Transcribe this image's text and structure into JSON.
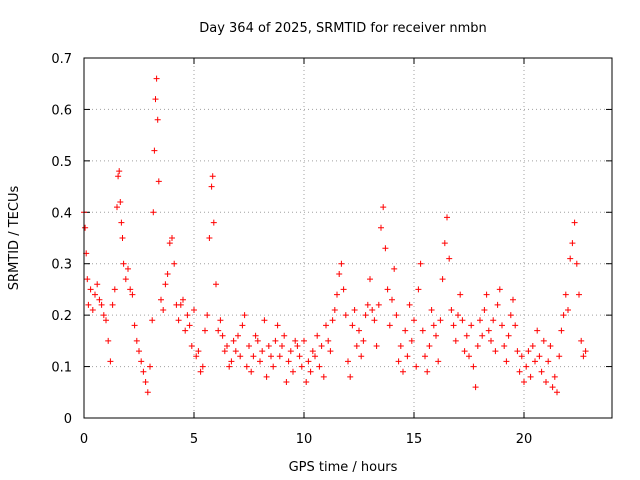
{
  "chart_data": {
    "type": "scatter",
    "title": "Day 364 of 2025, SRMTID for receiver nmbn",
    "xlabel": "GPS time / hours",
    "ylabel": "SRMTID / TECUs",
    "xlim": [
      0,
      24
    ],
    "ylim": [
      0,
      0.7
    ],
    "xticks": [
      0,
      5,
      10,
      15,
      20
    ],
    "yticks": [
      0,
      0.1,
      0.2,
      0.3,
      0.4,
      0.5,
      0.6,
      0.7
    ],
    "xtick_labels": [
      "0",
      "5",
      "10",
      "15",
      "20"
    ],
    "ytick_labels": [
      "0",
      "0.1",
      "0.2",
      "0.3",
      "0.4",
      "0.5",
      "0.6",
      "0.7"
    ],
    "grid": true,
    "marker": "+",
    "color": "#ff0000",
    "series": [
      {
        "name": "SRMTID",
        "x": [
          0.0,
          0.05,
          0.1,
          0.15,
          0.2,
          0.3,
          0.4,
          0.5,
          0.6,
          0.7,
          0.8,
          0.9,
          1.0,
          1.1,
          1.2,
          1.3,
          1.4,
          1.5,
          1.55,
          1.6,
          1.65,
          1.7,
          1.75,
          1.8,
          1.9,
          2.0,
          2.1,
          2.2,
          2.3,
          2.4,
          2.5,
          2.6,
          2.7,
          2.8,
          2.9,
          3.0,
          3.1,
          3.15,
          3.2,
          3.25,
          3.3,
          3.35,
          3.4,
          3.5,
          3.6,
          3.7,
          3.8,
          3.9,
          4.0,
          4.1,
          4.2,
          4.3,
          4.4,
          4.5,
          4.6,
          4.7,
          4.8,
          4.9,
          5.0,
          5.1,
          5.2,
          5.3,
          5.4,
          5.5,
          5.6,
          5.7,
          5.8,
          5.85,
          5.9,
          6.0,
          6.1,
          6.2,
          6.3,
          6.4,
          6.5,
          6.6,
          6.7,
          6.8,
          6.9,
          7.0,
          7.1,
          7.2,
          7.3,
          7.4,
          7.5,
          7.6,
          7.7,
          7.8,
          7.9,
          8.0,
          8.1,
          8.2,
          8.3,
          8.4,
          8.5,
          8.6,
          8.7,
          8.8,
          8.9,
          9.0,
          9.1,
          9.2,
          9.3,
          9.4,
          9.5,
          9.6,
          9.7,
          9.8,
          9.9,
          10.0,
          10.1,
          10.2,
          10.3,
          10.4,
          10.5,
          10.6,
          10.7,
          10.8,
          10.9,
          11.0,
          11.1,
          11.2,
          11.3,
          11.4,
          11.5,
          11.6,
          11.7,
          11.8,
          11.9,
          12.0,
          12.1,
          12.2,
          12.3,
          12.4,
          12.5,
          12.6,
          12.7,
          12.8,
          12.9,
          13.0,
          13.1,
          13.2,
          13.3,
          13.4,
          13.5,
          13.6,
          13.7,
          13.8,
          13.9,
          14.0,
          14.1,
          14.2,
          14.3,
          14.4,
          14.5,
          14.6,
          14.7,
          14.8,
          14.9,
          15.0,
          15.1,
          15.2,
          15.3,
          15.4,
          15.5,
          15.6,
          15.7,
          15.8,
          15.9,
          16.0,
          16.1,
          16.2,
          16.3,
          16.4,
          16.5,
          16.6,
          16.7,
          16.8,
          16.9,
          17.0,
          17.1,
          17.2,
          17.3,
          17.4,
          17.5,
          17.6,
          17.7,
          17.8,
          17.9,
          18.0,
          18.1,
          18.2,
          18.3,
          18.4,
          18.5,
          18.6,
          18.7,
          18.8,
          18.9,
          19.0,
          19.1,
          19.2,
          19.3,
          19.4,
          19.5,
          19.6,
          19.7,
          19.8,
          19.9,
          20.0,
          20.1,
          20.2,
          20.3,
          20.4,
          20.5,
          20.6,
          20.7,
          20.8,
          20.9,
          21.0,
          21.1,
          21.2,
          21.3,
          21.4,
          21.5,
          21.6,
          21.7,
          21.8,
          21.9,
          22.0,
          22.1,
          22.2,
          22.3,
          22.4,
          22.5,
          22.6,
          22.7,
          22.8
        ],
        "y": [
          0.4,
          0.37,
          0.32,
          0.27,
          0.22,
          0.25,
          0.21,
          0.24,
          0.26,
          0.23,
          0.22,
          0.2,
          0.19,
          0.15,
          0.11,
          0.22,
          0.25,
          0.41,
          0.47,
          0.48,
          0.42,
          0.38,
          0.35,
          0.3,
          0.27,
          0.29,
          0.25,
          0.24,
          0.18,
          0.15,
          0.13,
          0.11,
          0.09,
          0.07,
          0.05,
          0.1,
          0.19,
          0.4,
          0.52,
          0.62,
          0.66,
          0.58,
          0.46,
          0.23,
          0.21,
          0.26,
          0.28,
          0.34,
          0.35,
          0.3,
          0.22,
          0.19,
          0.22,
          0.23,
          0.17,
          0.2,
          0.18,
          0.14,
          0.21,
          0.12,
          0.13,
          0.09,
          0.1,
          0.17,
          0.2,
          0.35,
          0.45,
          0.47,
          0.38,
          0.26,
          0.17,
          0.19,
          0.16,
          0.13,
          0.14,
          0.1,
          0.11,
          0.15,
          0.13,
          0.16,
          0.12,
          0.18,
          0.2,
          0.1,
          0.14,
          0.09,
          0.12,
          0.16,
          0.15,
          0.11,
          0.13,
          0.19,
          0.08,
          0.14,
          0.12,
          0.1,
          0.15,
          0.18,
          0.12,
          0.14,
          0.16,
          0.07,
          0.11,
          0.13,
          0.09,
          0.15,
          0.14,
          0.12,
          0.1,
          0.15,
          0.07,
          0.11,
          0.09,
          0.13,
          0.12,
          0.16,
          0.1,
          0.14,
          0.08,
          0.18,
          0.15,
          0.13,
          0.19,
          0.21,
          0.24,
          0.28,
          0.3,
          0.25,
          0.2,
          0.11,
          0.08,
          0.18,
          0.21,
          0.14,
          0.17,
          0.12,
          0.15,
          0.2,
          0.22,
          0.27,
          0.21,
          0.19,
          0.14,
          0.22,
          0.37,
          0.41,
          0.33,
          0.25,
          0.18,
          0.23,
          0.29,
          0.2,
          0.11,
          0.14,
          0.09,
          0.17,
          0.12,
          0.22,
          0.15,
          0.19,
          0.1,
          0.25,
          0.3,
          0.17,
          0.12,
          0.09,
          0.14,
          0.21,
          0.18,
          0.16,
          0.11,
          0.19,
          0.27,
          0.34,
          0.39,
          0.31,
          0.21,
          0.18,
          0.15,
          0.2,
          0.24,
          0.19,
          0.13,
          0.16,
          0.12,
          0.18,
          0.1,
          0.06,
          0.14,
          0.19,
          0.16,
          0.21,
          0.24,
          0.17,
          0.15,
          0.19,
          0.13,
          0.22,
          0.25,
          0.18,
          0.14,
          0.11,
          0.16,
          0.2,
          0.23,
          0.18,
          0.13,
          0.09,
          0.12,
          0.07,
          0.1,
          0.13,
          0.08,
          0.14,
          0.11,
          0.17,
          0.12,
          0.09,
          0.15,
          0.07,
          0.11,
          0.14,
          0.06,
          0.08,
          0.05,
          0.12,
          0.17,
          0.2,
          0.24,
          0.21,
          0.31,
          0.34,
          0.38,
          0.3,
          0.24,
          0.15,
          0.12,
          0.13
        ]
      }
    ]
  }
}
